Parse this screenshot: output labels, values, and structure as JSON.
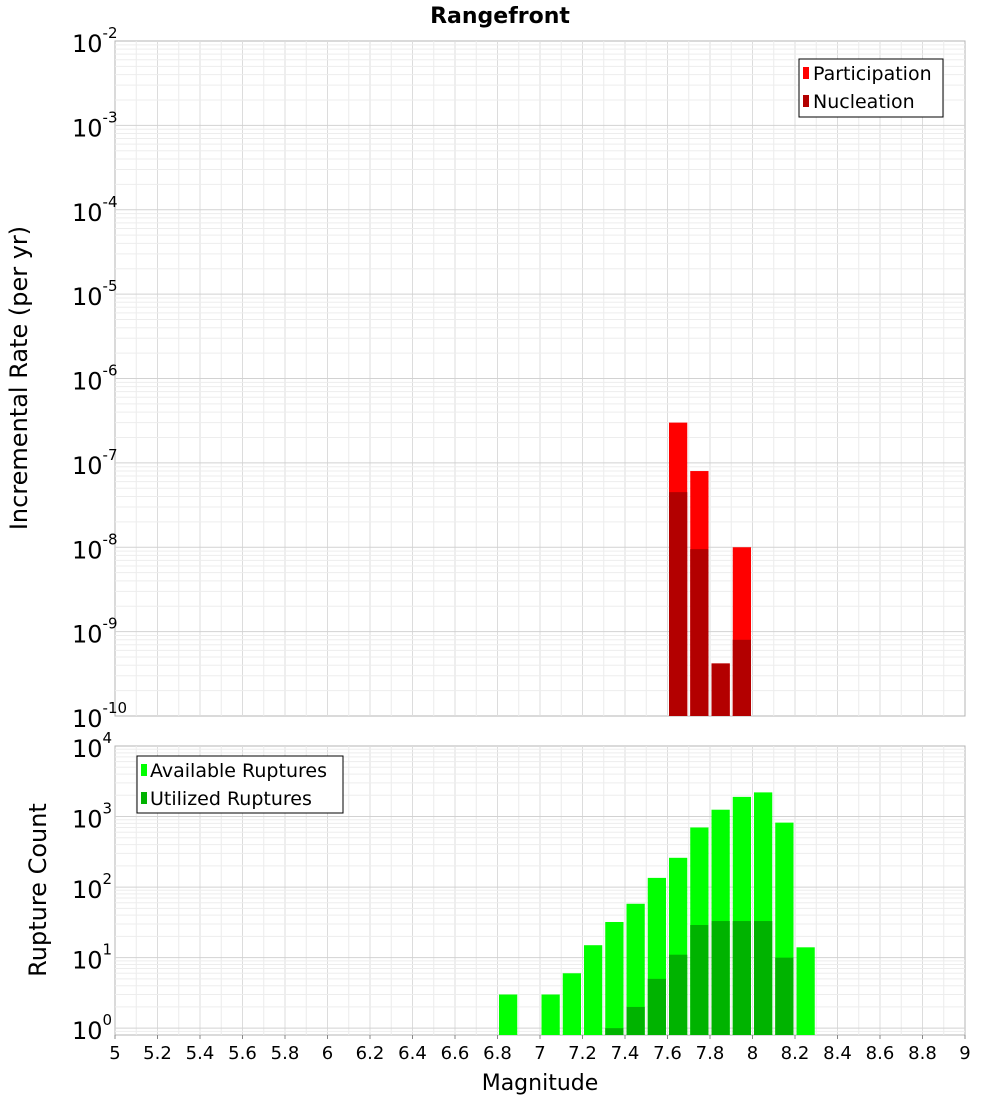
{
  "chart_data": [
    {
      "type": "bar",
      "title": "Rangefront",
      "xlabel": "",
      "ylabel": "Incremental Rate (per yr)",
      "yscale": "log",
      "ylim": [
        1e-10,
        0.01
      ],
      "xlim": [
        5,
        9
      ],
      "bin_width": 0.1,
      "grid": true,
      "legend_position": "top-right",
      "y_tick_labels": [
        {
          "base": "10",
          "exp": "-10",
          "value": 1e-10
        },
        {
          "base": "10",
          "exp": "-9",
          "value": 1e-09
        },
        {
          "base": "10",
          "exp": "-8",
          "value": 1e-08
        },
        {
          "base": "10",
          "exp": "-7",
          "value": 1e-07
        },
        {
          "base": "10",
          "exp": "-6",
          "value": 1e-06
        },
        {
          "base": "10",
          "exp": "-5",
          "value": 1e-05
        },
        {
          "base": "10",
          "exp": "-4",
          "value": 0.0001
        },
        {
          "base": "10",
          "exp": "-3",
          "value": 0.001
        },
        {
          "base": "10",
          "exp": "-2",
          "value": 0.01
        }
      ],
      "series": [
        {
          "name": "Participation",
          "color": "#ff0000",
          "x": [
            7.65,
            7.75,
            7.85,
            7.95
          ],
          "values": [
            3e-07,
            8e-08,
            4.2e-10,
            1e-08
          ]
        },
        {
          "name": "Nucleation",
          "color": "#b30000",
          "x": [
            7.65,
            7.75,
            7.85,
            7.95
          ],
          "values": [
            4.5e-08,
            9.5e-09,
            4.2e-10,
            8e-10
          ]
        }
      ]
    },
    {
      "type": "bar",
      "title": "",
      "xlabel": "Magnitude",
      "ylabel": "Rupture Count",
      "yscale": "log",
      "ylim": [
        0.8,
        10000
      ],
      "xlim": [
        5,
        9
      ],
      "bin_width": 0.1,
      "grid": true,
      "legend_position": "top-left",
      "x_tick_labels": [
        "5",
        "5.2",
        "5.4",
        "5.6",
        "5.8",
        "6",
        "6.2",
        "6.4",
        "6.6",
        "6.8",
        "7",
        "7.2",
        "7.4",
        "7.6",
        "7.8",
        "8",
        "8.2",
        "8.4",
        "8.6",
        "8.8",
        "9"
      ],
      "y_tick_labels": [
        {
          "base": "10",
          "exp": "0",
          "value": 1
        },
        {
          "base": "10",
          "exp": "1",
          "value": 10
        },
        {
          "base": "10",
          "exp": "2",
          "value": 100
        },
        {
          "base": "10",
          "exp": "3",
          "value": 1000
        },
        {
          "base": "10",
          "exp": "4",
          "value": 10000
        }
      ],
      "series": [
        {
          "name": "Available Ruptures",
          "color": "#00ff00",
          "x": [
            6.85,
            7.05,
            7.15,
            7.25,
            7.35,
            7.45,
            7.55,
            7.65,
            7.75,
            7.85,
            7.95,
            8.05,
            8.15,
            8.25
          ],
          "values": [
            3,
            3,
            6,
            15,
            32,
            58,
            135,
            260,
            700,
            1250,
            1900,
            2200,
            820,
            14
          ]
        },
        {
          "name": "Utilized Ruptures",
          "color": "#00b300",
          "x": [
            7.35,
            7.45,
            7.55,
            7.65,
            7.75,
            7.85,
            7.95,
            8.05,
            8.15
          ],
          "values": [
            1,
            2,
            5,
            11,
            29,
            33,
            33,
            33,
            10
          ]
        }
      ]
    }
  ]
}
